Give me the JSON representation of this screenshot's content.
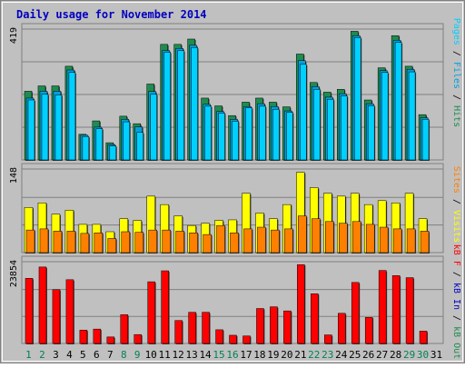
{
  "colors": {
    "background": "#c0c0c0",
    "title": "#0000c0",
    "hits": "#1e8c50",
    "files": "#00a0e0",
    "pages": "#00d0ff",
    "visits": "#ffff00",
    "sites": "#ff8000",
    "kbytes": "#ff0000",
    "weekend_day": "#00805a",
    "weekday": "#000000",
    "legend_separator": "#000000"
  },
  "chart_data": [
    {
      "type": "bar",
      "title": "Daily usage for November 2014",
      "categories": [
        "1",
        "2",
        "3",
        "4",
        "5",
        "6",
        "7",
        "8",
        "9",
        "10",
        "11",
        "12",
        "13",
        "14",
        "15",
        "16",
        "17",
        "18",
        "19",
        "20",
        "21",
        "22",
        "23",
        "24",
        "25",
        "26",
        "27",
        "28",
        "29",
        "30",
        "31"
      ],
      "weekend_days": [
        "1",
        "2",
        "8",
        "9",
        "15",
        "16",
        "22",
        "23",
        "29",
        "30"
      ],
      "legend": [
        "Pages",
        "Files",
        "Hits"
      ],
      "ylabel": "419",
      "ylim": [
        0,
        419
      ],
      "series": [
        {
          "name": "Hits",
          "values": [
            220,
            237,
            237,
            300,
            82,
            125,
            55,
            140,
            116,
            243,
            370,
            370,
            387,
            198,
            173,
            142,
            185,
            198,
            185,
            170,
            339,
            248,
            217,
            226,
            412,
            192,
            295,
            398,
            300,
            145,
            null
          ]
        },
        {
          "name": "Files",
          "values": [
            198,
            220,
            220,
            288,
            79,
            105,
            49,
            130,
            106,
            219,
            350,
            357,
            367,
            178,
            155,
            130,
            171,
            180,
            171,
            157,
            318,
            235,
            201,
            212,
            398,
            180,
            286,
            383,
            290,
            135,
            null
          ]
        },
        {
          "name": "Pages",
          "values": [
            192,
            210,
            208,
            280,
            75,
            100,
            45,
            122,
            88,
            210,
            345,
            350,
            360,
            172,
            150,
            124,
            167,
            172,
            162,
            152,
            306,
            226,
            194,
            205,
            392,
            174,
            280,
            376,
            282,
            130,
            null
          ]
        }
      ]
    },
    {
      "type": "bar",
      "categories": [
        "1",
        "2",
        "3",
        "4",
        "5",
        "6",
        "7",
        "8",
        "9",
        "10",
        "11",
        "12",
        "13",
        "14",
        "15",
        "16",
        "17",
        "18",
        "19",
        "20",
        "21",
        "22",
        "23",
        "24",
        "25",
        "26",
        "27",
        "28",
        "29",
        "30",
        "31"
      ],
      "legend": [
        "Sites",
        "Visits"
      ],
      "ylabel": "148",
      "ylim": [
        0,
        148
      ],
      "series": [
        {
          "name": "Visits",
          "values": [
            80,
            88,
            68,
            75,
            50,
            50,
            37,
            60,
            57,
            100,
            85,
            65,
            48,
            52,
            57,
            58,
            105,
            70,
            60,
            85,
            142,
            115,
            105,
            100,
            105,
            85,
            92,
            88,
            105,
            60,
            null
          ]
        },
        {
          "name": "Sites",
          "values": [
            40,
            42,
            38,
            38,
            34,
            35,
            25,
            37,
            36,
            40,
            40,
            38,
            35,
            32,
            48,
            35,
            42,
            45,
            40,
            42,
            65,
            60,
            55,
            52,
            55,
            50,
            45,
            42,
            42,
            38,
            null
          ]
        }
      ]
    },
    {
      "type": "bar",
      "categories": [
        "1",
        "2",
        "3",
        "4",
        "5",
        "6",
        "7",
        "8",
        "9",
        "10",
        "11",
        "12",
        "13",
        "14",
        "15",
        "16",
        "17",
        "18",
        "19",
        "20",
        "21",
        "22",
        "23",
        "24",
        "25",
        "26",
        "27",
        "28",
        "29",
        "30",
        "31"
      ],
      "legend": [
        "KBytes"
      ],
      "legend_label": "kB F / kB In / kB Out",
      "ylabel": "23854",
      "ylim": [
        0,
        23854
      ],
      "series": [
        {
          "name": "KBytes",
          "values": [
            19000,
            22300,
            15700,
            18600,
            3900,
            4200,
            1900,
            8400,
            2600,
            18000,
            21200,
            6700,
            9100,
            9100,
            4000,
            2400,
            2200,
            10200,
            10700,
            9500,
            23000,
            14500,
            2500,
            8800,
            17800,
            7600,
            21300,
            19800,
            19200,
            3600,
            null
          ]
        }
      ]
    }
  ]
}
